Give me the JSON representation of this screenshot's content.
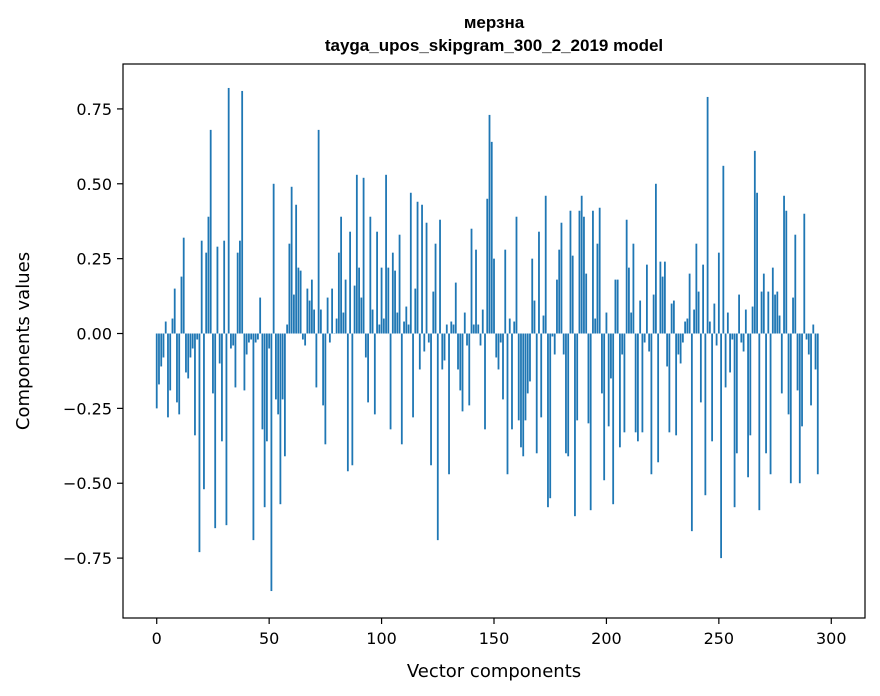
{
  "chart_data": {
    "type": "bar",
    "title": "мерзна",
    "subtitle": "tayga_upos_skipgram_300_2_2019 model",
    "xlabel": "Vector components",
    "ylabel": "Components values",
    "xlim": [
      -15,
      315
    ],
    "ylim": [
      -0.95,
      0.9
    ],
    "xticks": [
      0,
      50,
      100,
      150,
      200,
      250,
      300
    ],
    "yticks": [
      -0.75,
      -0.5,
      -0.25,
      0.0,
      0.25,
      0.5,
      0.75
    ],
    "xtick_labels": [
      "0",
      "50",
      "100",
      "150",
      "200",
      "250",
      "300"
    ],
    "ytick_labels": [
      "−0.75",
      "−0.50",
      "−0.25",
      "0.00",
      "0.25",
      "0.50",
      "0.75"
    ],
    "grid": false,
    "bar_color": "#1f77b4",
    "values": [
      -0.25,
      -0.17,
      -0.11,
      -0.08,
      0.04,
      -0.28,
      -0.19,
      0.05,
      0.15,
      -0.23,
      -0.27,
      0.19,
      0.32,
      -0.13,
      -0.15,
      -0.08,
      -0.05,
      -0.34,
      -0.02,
      -0.73,
      0.31,
      -0.52,
      0.27,
      0.39,
      0.68,
      -0.2,
      -0.65,
      0.29,
      -0.1,
      -0.36,
      0.31,
      -0.64,
      0.82,
      -0.05,
      -0.04,
      -0.18,
      0.27,
      0.31,
      0.81,
      -0.19,
      -0.07,
      -0.03,
      -0.02,
      -0.69,
      -0.03,
      -0.02,
      0.12,
      -0.32,
      -0.58,
      -0.36,
      -0.05,
      -0.86,
      0.5,
      -0.22,
      -0.27,
      -0.57,
      -0.22,
      -0.41,
      0.03,
      0.3,
      0.49,
      0.13,
      0.43,
      0.22,
      0.21,
      -0.02,
      -0.04,
      0.15,
      0.11,
      0.18,
      0.08,
      -0.18,
      0.68,
      0.08,
      -0.24,
      -0.37,
      0.12,
      -0.03,
      0.15,
      0.0,
      0.05,
      0.27,
      0.39,
      0.07,
      0.18,
      -0.46,
      0.34,
      -0.44,
      0.16,
      0.53,
      0.22,
      0.12,
      0.52,
      -0.08,
      -0.23,
      0.39,
      0.08,
      -0.27,
      0.34,
      0.03,
      0.22,
      0.05,
      0.53,
      0.22,
      -0.32,
      0.27,
      0.21,
      0.07,
      0.33,
      -0.37,
      0.04,
      0.09,
      0.03,
      0.47,
      -0.28,
      0.15,
      0.44,
      -0.12,
      0.43,
      -0.06,
      0.37,
      -0.03,
      -0.44,
      0.14,
      0.3,
      -0.69,
      0.38,
      -0.12,
      -0.09,
      0.03,
      -0.47,
      0.04,
      0.03,
      0.17,
      -0.12,
      -0.19,
      -0.26,
      0.07,
      -0.04,
      -0.24,
      0.35,
      0.03,
      0.28,
      0.03,
      -0.04,
      0.08,
      -0.32,
      0.45,
      0.73,
      0.64,
      0.25,
      -0.08,
      -0.12,
      -0.03,
      -0.22,
      0.28,
      -0.47,
      0.05,
      -0.32,
      0.04,
      0.39,
      -0.29,
      -0.38,
      -0.41,
      -0.29,
      -0.2,
      -0.16,
      0.25,
      0.11,
      -0.4,
      0.34,
      -0.28,
      0.06,
      0.46,
      -0.58,
      -0.55,
      -0.01,
      -0.07,
      0.18,
      0.28,
      0.37,
      -0.07,
      -0.4,
      -0.41,
      0.41,
      0.26,
      -0.61,
      -0.29,
      0.41,
      0.46,
      0.39,
      0.2,
      -0.3,
      -0.59,
      0.41,
      0.05,
      0.3,
      0.42,
      -0.2,
      -0.49,
      0.07,
      -0.31,
      -0.15,
      -0.57,
      0.18,
      0.18,
      -0.38,
      -0.07,
      -0.33,
      0.38,
      0.22,
      0.07,
      0.3,
      -0.33,
      -0.36,
      0.11,
      -0.33,
      -0.03,
      0.23,
      -0.06,
      -0.47,
      0.13,
      0.5,
      -0.43,
      0.24,
      0.19,
      0.24,
      -0.11,
      -0.33,
      0.1,
      0.11,
      -0.34,
      -0.07,
      -0.1,
      -0.03,
      0.04,
      0.05,
      0.2,
      -0.66,
      0.08,
      0.3,
      0.14,
      -0.23,
      0.23,
      -0.54,
      0.79,
      0.04,
      -0.36,
      0.1,
      -0.04,
      0.27,
      -0.75,
      0.56,
      -0.18,
      0.07,
      -0.13,
      -0.02,
      -0.58,
      -0.4,
      0.13,
      -0.03,
      -0.06,
      0.08,
      -0.48,
      -0.34,
      0.09,
      0.61,
      0.47,
      -0.59,
      0.14,
      0.2,
      -0.4,
      0.14,
      -0.47,
      0.22,
      0.13,
      0.14,
      0.06,
      -0.2,
      0.46,
      0.41,
      -0.27,
      -0.5,
      0.12,
      0.33,
      -0.19,
      -0.5,
      -0.31,
      0.4,
      -0.02,
      -0.07,
      -0.24,
      0.03,
      -0.12,
      -0.47
    ]
  }
}
